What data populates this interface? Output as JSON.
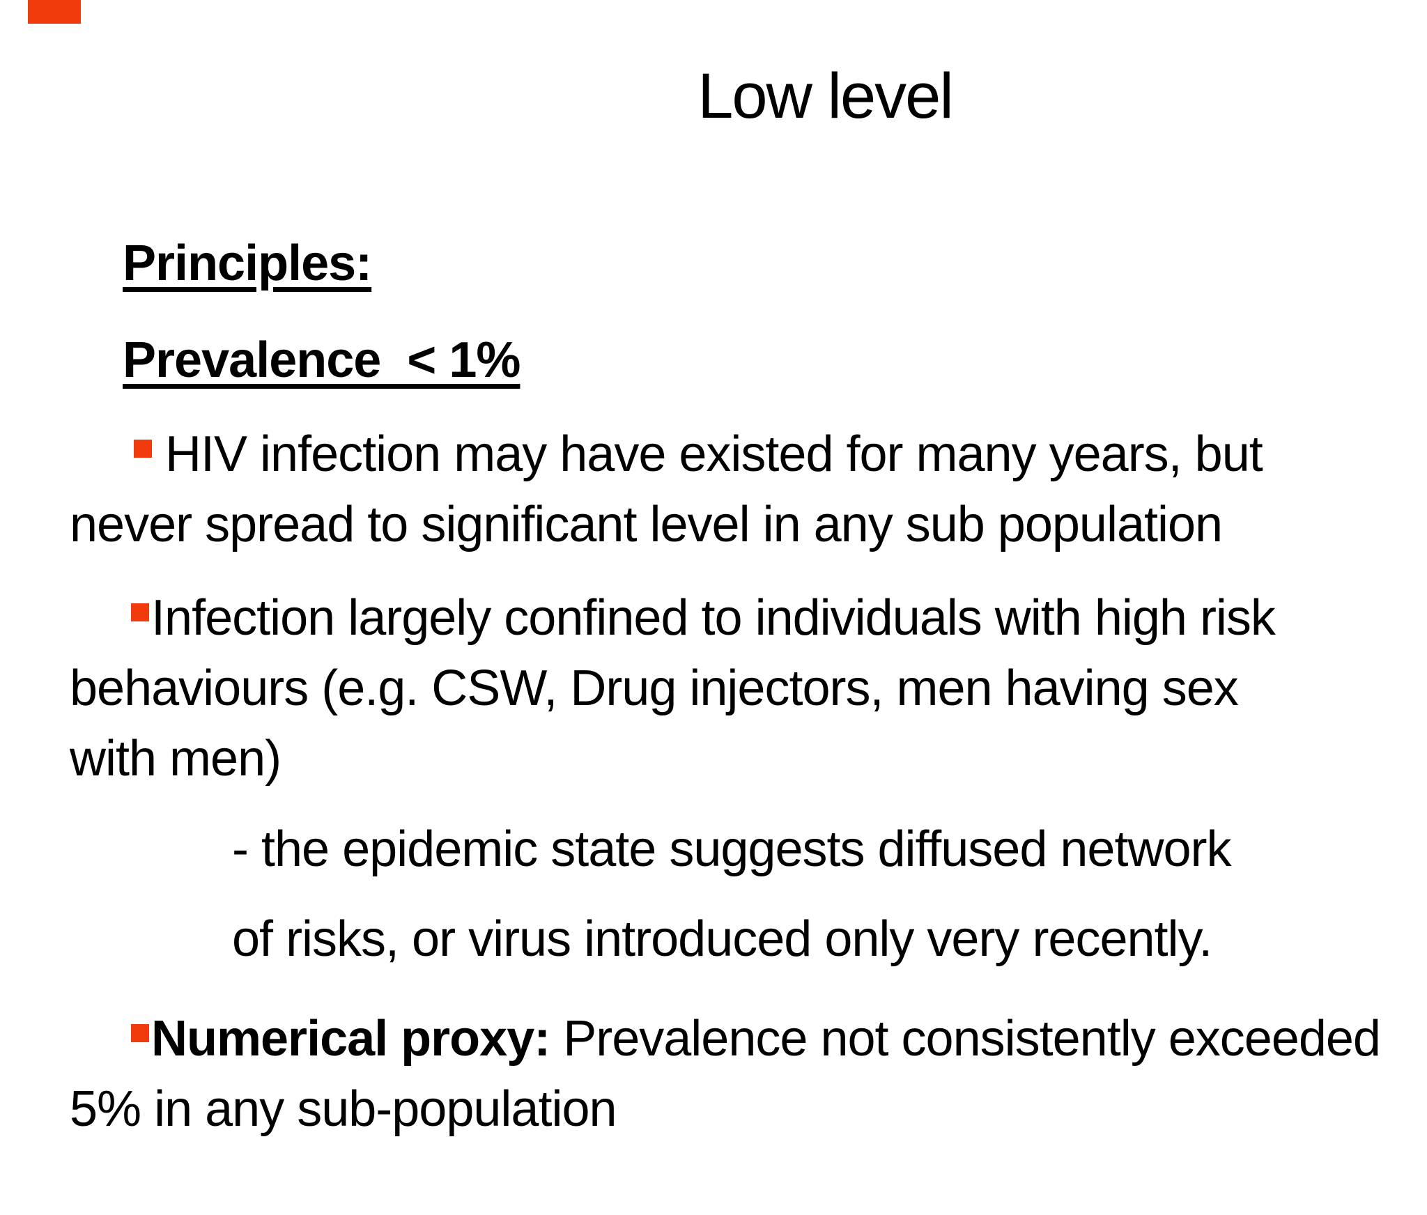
{
  "slide": {
    "title": "Low level",
    "accent_color": "#F23B0C",
    "text_color": "#000000",
    "background_color": "#FFFFFF",
    "headings": [
      {
        "text": "Principles:"
      },
      {
        "text": "Prevalence  < 1%"
      }
    ],
    "bullets": [
      {
        "lines": " HIV infection may have existed for many years, but\nnever spread to significant level in any sub population"
      },
      {
        "lines": "Infection largely confined to individuals with high risk\nbehaviours (e.g. CSW, Drug injectors, men having sex\nwith men)"
      },
      {
        "bold": "Numerical proxy:",
        "rest": " Prevalence not consistently exceeded\n5% in any sub-population"
      }
    ],
    "sub_lines": [
      "- the epidemic state suggests diffused network",
      "of risks, or virus introduced only very recently."
    ]
  }
}
